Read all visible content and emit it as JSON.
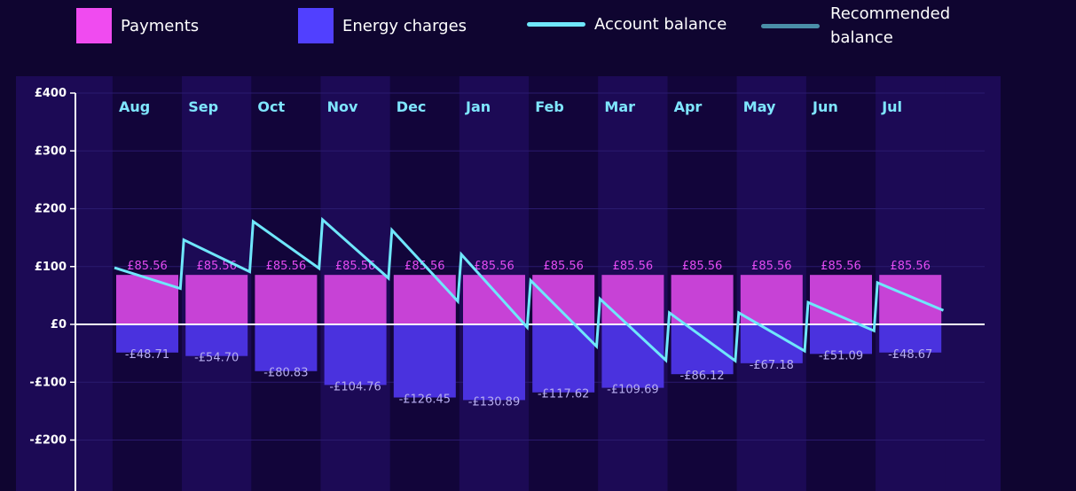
{
  "legend": {
    "payments": "Payments",
    "energy_charges": "Energy charges",
    "account_balance": "Account balance",
    "recommended_balance_line1": "Recommended",
    "recommended_balance_line2": "balance"
  },
  "colors": {
    "background": "#0f0530",
    "plot_band_dark": "#12053a",
    "plot_band_light": "#1c0a55",
    "payments": "#c742d6",
    "payments_swatch": "#f04bf0",
    "energy_charges": "#4a32de",
    "energy_swatch": "#5140ff",
    "account_balance": "#6fe7fb",
    "recommended_balance": "#4a8fa8",
    "month_label": "#7fe6ff",
    "zero_line": "#ffffff"
  },
  "chart_data": {
    "type": "bar",
    "categories": [
      "Aug",
      "Sep",
      "Oct",
      "Nov",
      "Dec",
      "Jan",
      "Feb",
      "Mar",
      "Apr",
      "May",
      "Jun",
      "Jul"
    ],
    "ylim": [
      -290,
      400
    ],
    "yticks": [
      400,
      300,
      200,
      100,
      0,
      -100,
      -200
    ],
    "ytick_labels": [
      "£400",
      "£300",
      "£200",
      "£100",
      "£0",
      "-£100",
      "-£200"
    ],
    "series": [
      {
        "name": "Payments",
        "values": [
          85.56,
          85.56,
          85.56,
          85.56,
          85.56,
          85.56,
          85.56,
          85.56,
          85.56,
          85.56,
          85.56,
          85.56
        ],
        "labels": [
          "£85.56",
          "£85.56",
          "£85.56",
          "£85.56",
          "£85.56",
          "£85.56",
          "£85.56",
          "£85.56",
          "£85.56",
          "£85.56",
          "£85.56",
          "£85.56"
        ]
      },
      {
        "name": "Energy charges",
        "values": [
          -48.71,
          -54.7,
          -80.83,
          -104.76,
          -126.45,
          -130.89,
          -117.62,
          -109.69,
          -86.12,
          -67.18,
          -51.09,
          -48.67
        ],
        "labels": [
          "-£48.71",
          "-£54.70",
          "-£80.83",
          "-£104.76",
          "-£126.45",
          "-£130.89",
          "-£117.62",
          "-£109.69",
          "-£86.12",
          "-£67.18",
          "-£51.09",
          "-£48.67"
        ]
      }
    ],
    "account_balance": {
      "name": "Account balance",
      "points": [
        [
          0.0,
          98
        ],
        [
          0.95,
          62
        ],
        [
          1.0,
          146
        ],
        [
          1.95,
          91
        ],
        [
          2.0,
          178
        ],
        [
          2.95,
          97
        ],
        [
          3.0,
          181
        ],
        [
          3.95,
          80
        ],
        [
          4.0,
          163
        ],
        [
          4.95,
          40
        ],
        [
          5.0,
          121
        ],
        [
          5.95,
          -5
        ],
        [
          6.0,
          76
        ],
        [
          6.95,
          -38
        ],
        [
          7.0,
          44
        ],
        [
          7.95,
          -62
        ],
        [
          8.0,
          20
        ],
        [
          8.95,
          -63
        ],
        [
          9.0,
          20
        ],
        [
          9.95,
          -46
        ],
        [
          10.0,
          38
        ],
        [
          10.95,
          -11
        ],
        [
          11.0,
          72
        ],
        [
          11.95,
          24
        ]
      ]
    }
  }
}
